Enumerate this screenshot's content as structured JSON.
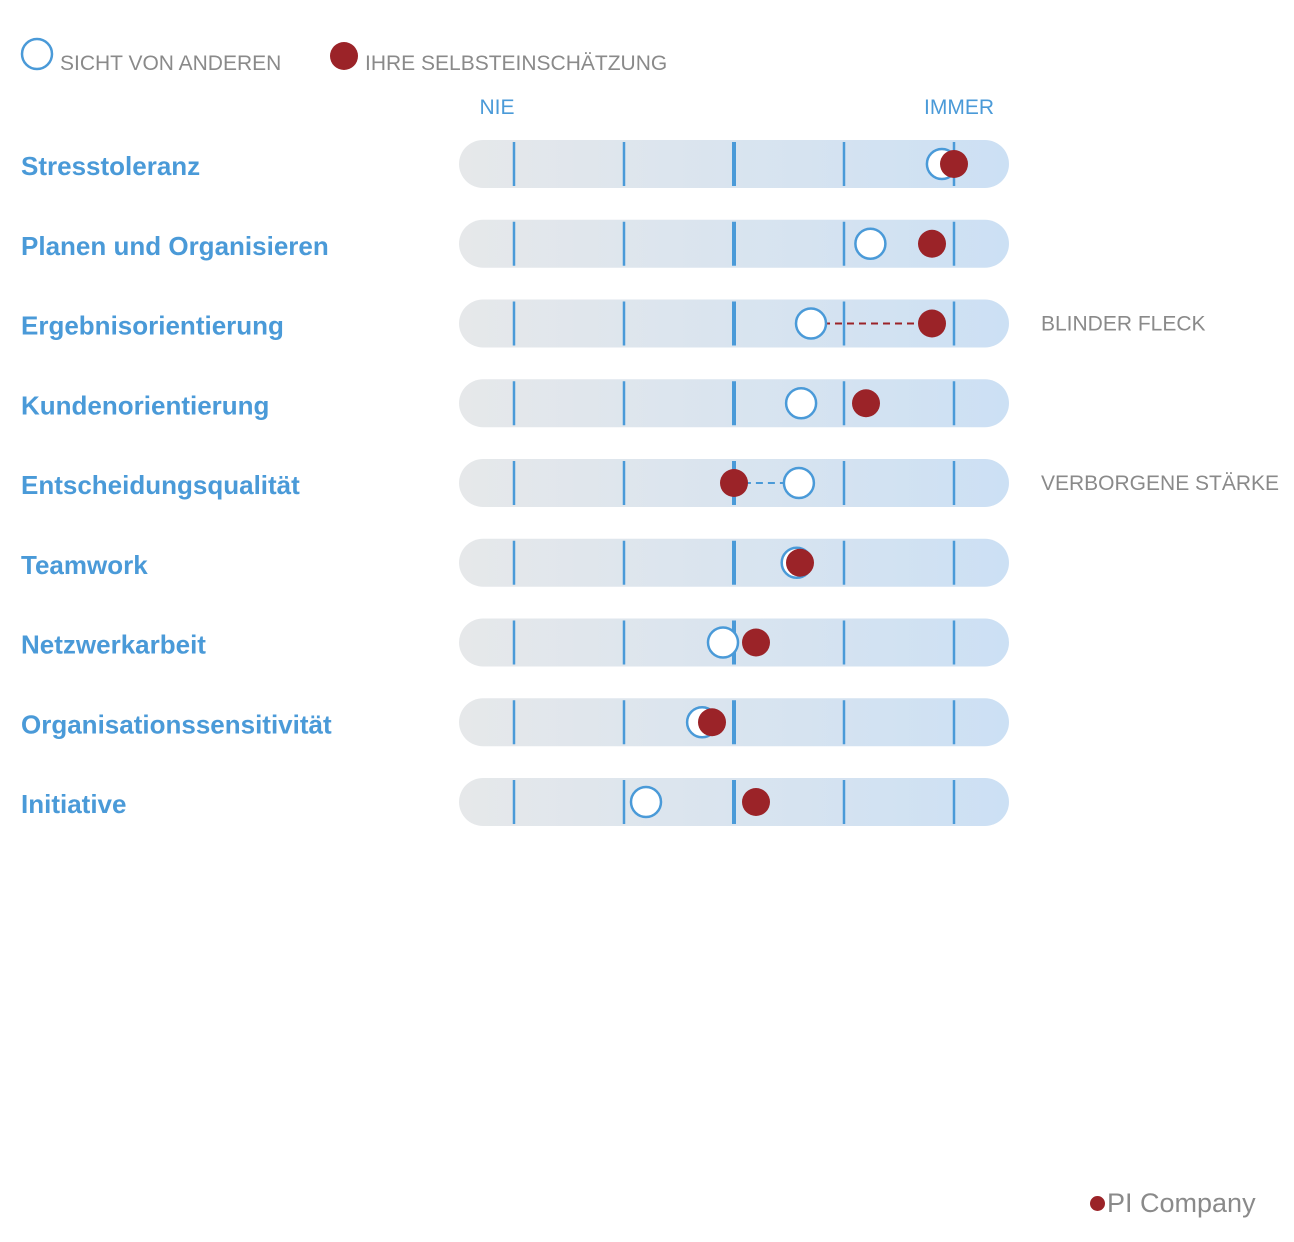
{
  "legend": {
    "others_label": "SICHT VON ANDEREN",
    "self_label": "IHRE SELBSTEINSCHÄTZUNG"
  },
  "scale": {
    "min_label": "NIE",
    "max_label": "IMMER"
  },
  "brand": {
    "name": "PI Company"
  },
  "colors": {
    "accent_blue": "#4a9ad8",
    "self_red": "#9b2328",
    "track_left": "#e6e8ea",
    "track_right": "#cce0f4",
    "muted_text": "#8a8a8a"
  },
  "chart_data": {
    "type": "scatter",
    "scale_range": [
      1,
      5
    ],
    "tick_values": [
      1,
      2,
      3,
      4,
      5
    ],
    "series": [
      {
        "name": "SICHT VON ANDEREN",
        "marker": "open-circle"
      },
      {
        "name": "IHRE SELBSTEINSCHÄTZUNG",
        "marker": "filled-circle"
      }
    ],
    "rows": [
      {
        "label": "Stresstoleranz",
        "others": 4.89,
        "self": 5.0,
        "annotation": ""
      },
      {
        "label": "Planen und Organisieren",
        "others": 4.24,
        "self": 4.8,
        "annotation": ""
      },
      {
        "label": "Ergebnisorientierung",
        "others": 3.7,
        "self": 4.8,
        "annotation": "BLINDER FLECK",
        "gap_line": "self"
      },
      {
        "label": "Kundenorientierung",
        "others": 3.61,
        "self": 4.2,
        "annotation": ""
      },
      {
        "label": "Entscheidungsqualität",
        "others": 3.59,
        "self": 3.0,
        "annotation": "VERBORGENE STÄRKE",
        "gap_line": "others"
      },
      {
        "label": "Teamwork",
        "others": 3.57,
        "self": 3.6,
        "annotation": ""
      },
      {
        "label": "Netzwerkarbeit",
        "others": 2.9,
        "self": 3.2,
        "annotation": ""
      },
      {
        "label": "Organisationssensitivität",
        "others": 2.71,
        "self": 2.8,
        "annotation": ""
      },
      {
        "label": "Initiative",
        "others": 2.2,
        "self": 3.2,
        "annotation": ""
      }
    ]
  }
}
